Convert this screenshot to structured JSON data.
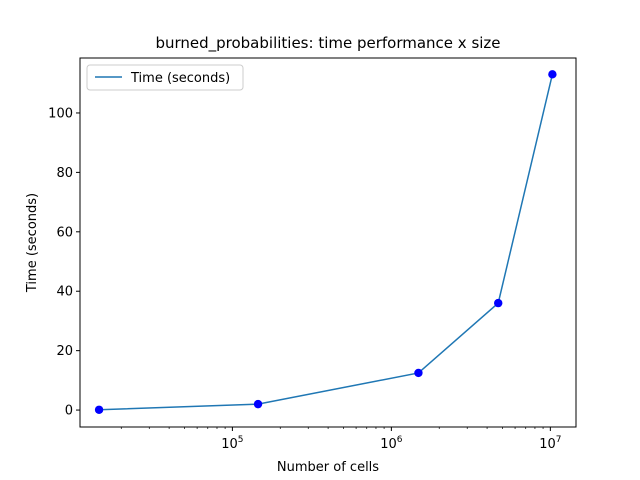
{
  "chart_data": {
    "type": "line",
    "title": "burned_probabilities: time performance x size",
    "xlabel": "Number of cells",
    "ylabel": "Time (seconds)",
    "xscale": "log",
    "xlim": [
      11000,
      14500000
    ],
    "ylim": [
      -5.7,
      118.5
    ],
    "x_ticks": [
      {
        "base": "10",
        "exp": "5",
        "value": 100000
      },
      {
        "base": "10",
        "exp": "6",
        "value": 1000000
      },
      {
        "base": "10",
        "exp": "7",
        "value": 10000000
      }
    ],
    "y_ticks": [
      "0",
      "20",
      "40",
      "60",
      "80",
      "100"
    ],
    "y_tick_values": [
      0,
      20,
      40,
      60,
      80,
      100
    ],
    "series": [
      {
        "name": "Time (seconds)",
        "color": "#1f77b4",
        "marker_color": "#0000ff",
        "x": [
          14500,
          145000,
          1480000,
          4700000,
          10300000
        ],
        "y": [
          0.1,
          2.0,
          12.5,
          36.0,
          113.0
        ]
      }
    ],
    "legend": {
      "position": "upper-left",
      "entries": [
        "Time (seconds)"
      ]
    },
    "grid": false
  }
}
